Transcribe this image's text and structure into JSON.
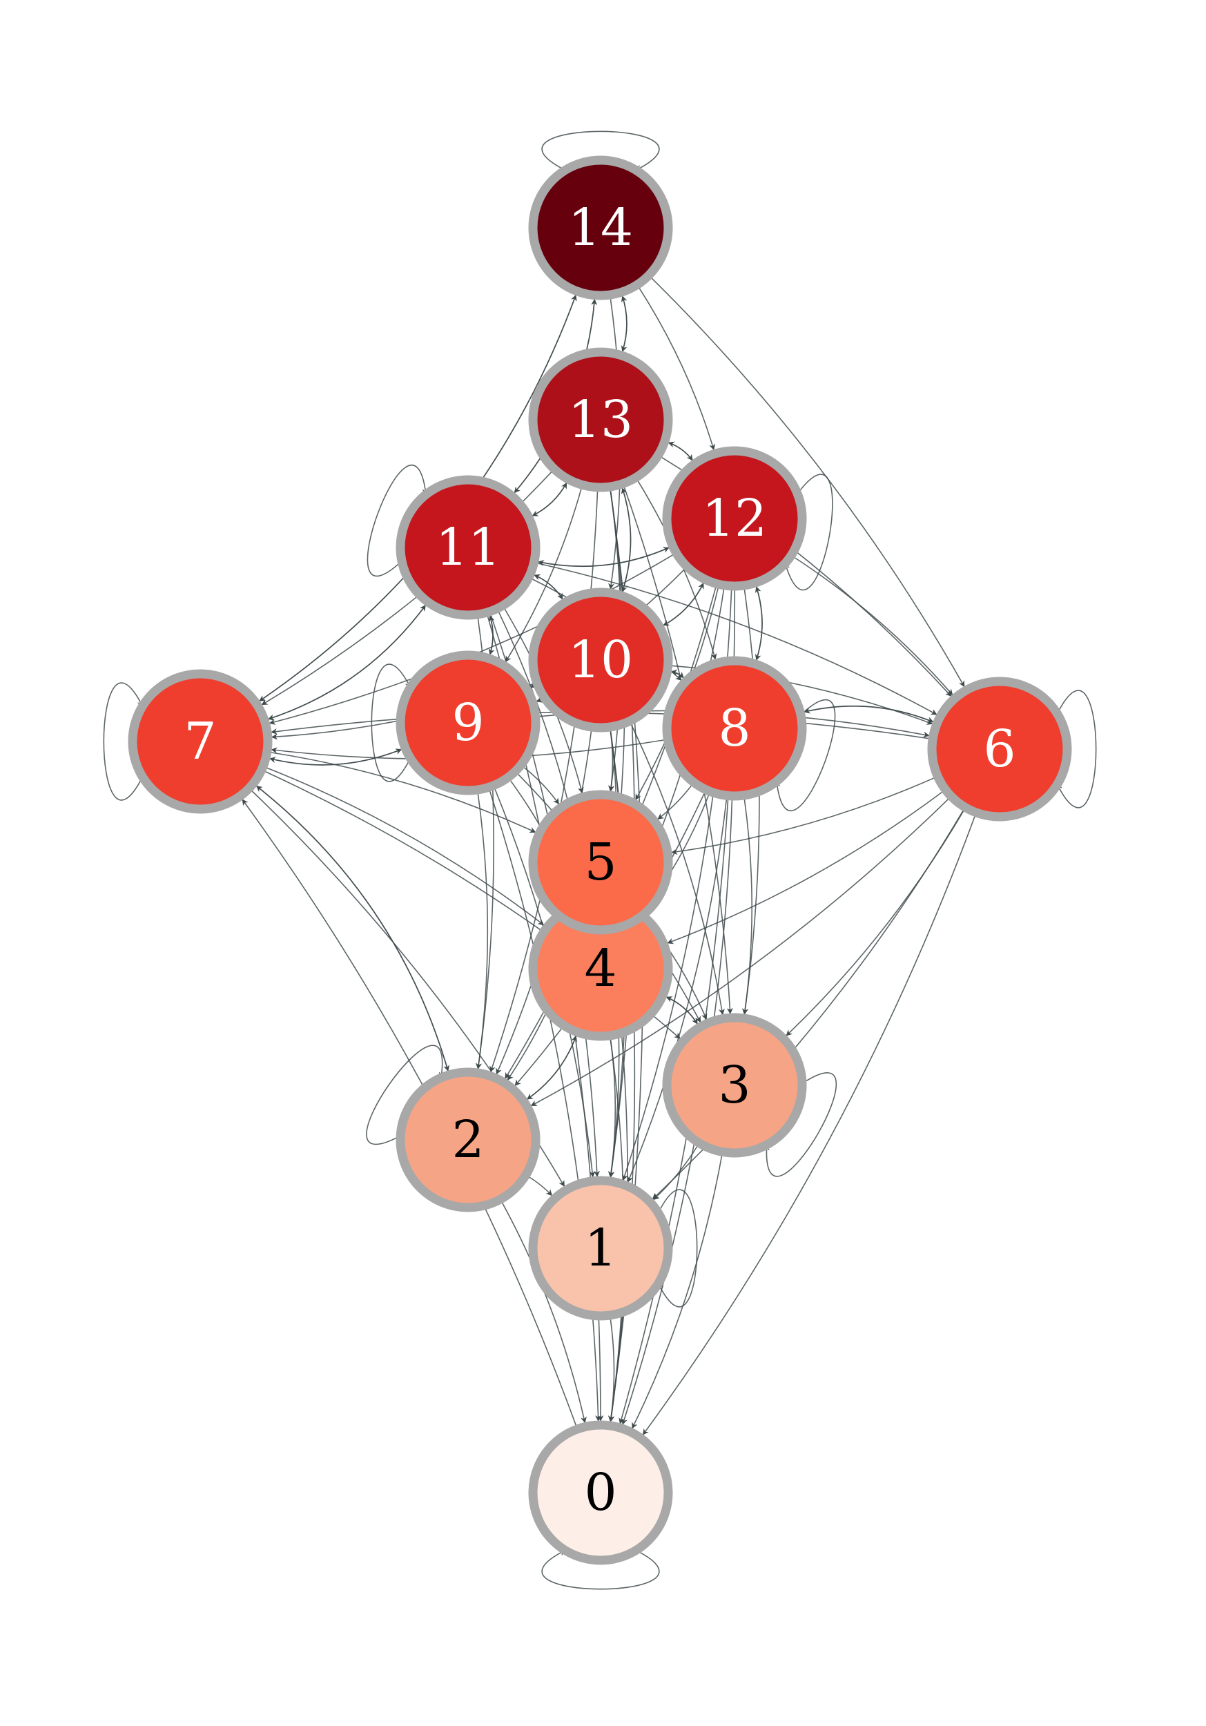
{
  "diagram": {
    "type": "directed-graph",
    "edge_color": "#3f4a4c",
    "node_border_color": "#a8a8a8",
    "nodes": [
      {
        "id": 0,
        "label": "0",
        "fill": "#fdefe7",
        "text_color": "#000000"
      },
      {
        "id": 1,
        "label": "1",
        "fill": "#f9c3ab",
        "text_color": "#000000"
      },
      {
        "id": 2,
        "label": "2",
        "fill": "#f6a486",
        "text_color": "#000000"
      },
      {
        "id": 3,
        "label": "3",
        "fill": "#f6a486",
        "text_color": "#000000"
      },
      {
        "id": 4,
        "label": "4",
        "fill": "#fb7f5c",
        "text_color": "#000000"
      },
      {
        "id": 5,
        "label": "5",
        "fill": "#fb6b4a",
        "text_color": "#000000"
      },
      {
        "id": 6,
        "label": "6",
        "fill": "#ef3e2e",
        "text_color": "#ffffff"
      },
      {
        "id": 7,
        "label": "7",
        "fill": "#ef3e2e",
        "text_color": "#ffffff"
      },
      {
        "id": 8,
        "label": "8",
        "fill": "#ef3e2e",
        "text_color": "#ffffff"
      },
      {
        "id": 9,
        "label": "9",
        "fill": "#ef3e2e",
        "text_color": "#ffffff"
      },
      {
        "id": 10,
        "label": "10",
        "fill": "#e22d26",
        "text_color": "#ffffff"
      },
      {
        "id": 11,
        "label": "11",
        "fill": "#c4161c",
        "text_color": "#ffffff"
      },
      {
        "id": 12,
        "label": "12",
        "fill": "#c4161c",
        "text_color": "#ffffff"
      },
      {
        "id": 13,
        "label": "13",
        "fill": "#ad1018",
        "text_color": "#ffffff"
      },
      {
        "id": 14,
        "label": "14",
        "fill": "#67000d",
        "text_color": "#ffffff"
      }
    ],
    "edges": [
      [
        0,
        0
      ],
      [
        0,
        7
      ],
      [
        1,
        0
      ],
      [
        1,
        1
      ],
      [
        2,
        0
      ],
      [
        2,
        2
      ],
      [
        2,
        7
      ],
      [
        2,
        1
      ],
      [
        2,
        4
      ],
      [
        3,
        0
      ],
      [
        3,
        3
      ],
      [
        3,
        1
      ],
      [
        3,
        4
      ],
      [
        4,
        0
      ],
      [
        4,
        1
      ],
      [
        4,
        2
      ],
      [
        4,
        3
      ],
      [
        4,
        5
      ],
      [
        5,
        0
      ],
      [
        5,
        1
      ],
      [
        5,
        2
      ],
      [
        5,
        3
      ],
      [
        5,
        4
      ],
      [
        6,
        0
      ],
      [
        6,
        1
      ],
      [
        6,
        2
      ],
      [
        6,
        3
      ],
      [
        6,
        4
      ],
      [
        6,
        5
      ],
      [
        6,
        6
      ],
      [
        6,
        7
      ],
      [
        6,
        8
      ],
      [
        7,
        7
      ],
      [
        7,
        14
      ],
      [
        7,
        11
      ],
      [
        7,
        9
      ],
      [
        7,
        5
      ],
      [
        7,
        4
      ],
      [
        7,
        2
      ],
      [
        7,
        3
      ],
      [
        7,
        1
      ],
      [
        8,
        0
      ],
      [
        8,
        1
      ],
      [
        8,
        2
      ],
      [
        8,
        3
      ],
      [
        8,
        4
      ],
      [
        8,
        5
      ],
      [
        8,
        6
      ],
      [
        8,
        7
      ],
      [
        8,
        8
      ],
      [
        8,
        10
      ],
      [
        8,
        12
      ],
      [
        9,
        0
      ],
      [
        9,
        1
      ],
      [
        9,
        2
      ],
      [
        9,
        3
      ],
      [
        9,
        4
      ],
      [
        9,
        5
      ],
      [
        9,
        6
      ],
      [
        9,
        7
      ],
      [
        9,
        9
      ],
      [
        9,
        11
      ],
      [
        10,
        0
      ],
      [
        10,
        1
      ],
      [
        10,
        2
      ],
      [
        10,
        3
      ],
      [
        10,
        4
      ],
      [
        10,
        5
      ],
      [
        10,
        6
      ],
      [
        10,
        7
      ],
      [
        10,
        8
      ],
      [
        10,
        9
      ],
      [
        10,
        11
      ],
      [
        10,
        12
      ],
      [
        10,
        13
      ],
      [
        11,
        0
      ],
      [
        11,
        1
      ],
      [
        11,
        2
      ],
      [
        11,
        4
      ],
      [
        11,
        5
      ],
      [
        11,
        6
      ],
      [
        11,
        7
      ],
      [
        11,
        8
      ],
      [
        11,
        9
      ],
      [
        11,
        10
      ],
      [
        11,
        11
      ],
      [
        11,
        12
      ],
      [
        11,
        13
      ],
      [
        11,
        14
      ],
      [
        12,
        0
      ],
      [
        12,
        1
      ],
      [
        12,
        2
      ],
      [
        12,
        3
      ],
      [
        12,
        4
      ],
      [
        12,
        5
      ],
      [
        12,
        6
      ],
      [
        12,
        7
      ],
      [
        12,
        8
      ],
      [
        12,
        9
      ],
      [
        12,
        10
      ],
      [
        12,
        11
      ],
      [
        12,
        12
      ],
      [
        12,
        13
      ],
      [
        13,
        0
      ],
      [
        13,
        1
      ],
      [
        13,
        2
      ],
      [
        13,
        3
      ],
      [
        13,
        4
      ],
      [
        13,
        5
      ],
      [
        13,
        6
      ],
      [
        13,
        7
      ],
      [
        13,
        8
      ],
      [
        13,
        9
      ],
      [
        13,
        10
      ],
      [
        13,
        11
      ],
      [
        13,
        12
      ],
      [
        13,
        14
      ],
      [
        14,
        13
      ],
      [
        14,
        14
      ],
      [
        14,
        12
      ],
      [
        14,
        11
      ],
      [
        14,
        6
      ],
      [
        14,
        7
      ],
      [
        14,
        10
      ]
    ]
  }
}
